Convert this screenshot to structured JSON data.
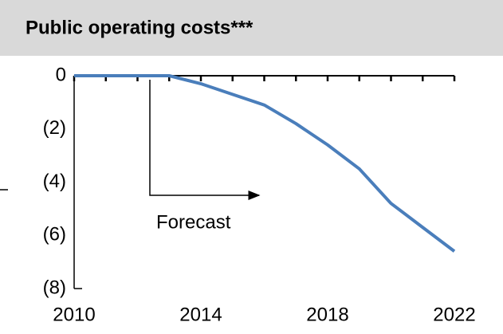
{
  "chart_data": {
    "type": "line",
    "title": "Public operating costs***",
    "x": [
      2010,
      2011,
      2012,
      2013,
      2014,
      2015,
      2016,
      2017,
      2018,
      2019,
      2020,
      2021,
      2022
    ],
    "series": [
      {
        "name": "Public operating costs",
        "color": "#4a7ebb",
        "values": [
          0,
          0,
          0,
          0,
          -0.3,
          -0.7,
          -1.1,
          -1.8,
          -2.6,
          -3.5,
          -4.8,
          -5.7,
          -6.6
        ]
      }
    ],
    "xlim": [
      2010,
      2022
    ],
    "xticks": [
      2010,
      2014,
      2018,
      2022
    ],
    "ylim": [
      -8,
      0
    ],
    "yticks": [
      {
        "value": 0,
        "label": "0"
      },
      {
        "value": -2,
        "label": "(2)"
      },
      {
        "value": -4,
        "label": "(4)"
      },
      {
        "value": -6,
        "label": "(6)"
      },
      {
        "value": -8,
        "label": "(8)"
      }
    ],
    "annotation": "Forecast"
  }
}
